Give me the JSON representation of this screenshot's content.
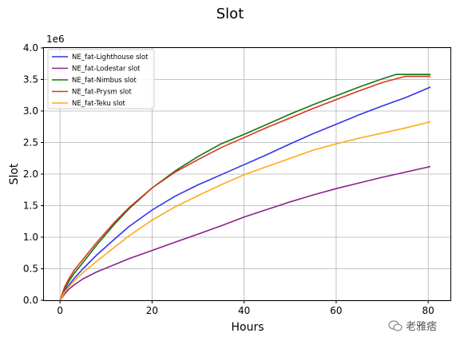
{
  "chart_data": {
    "type": "line",
    "title": "Slot",
    "xlabel": "Hours",
    "ylabel": "Slot",
    "y_offset_label": "1e6",
    "xlim": [
      -3.5,
      85
    ],
    "ylim": [
      0,
      4000000
    ],
    "xticks": [
      0,
      20,
      40,
      60,
      80
    ],
    "yticks": [
      0,
      500000,
      1000000,
      1500000,
      2000000,
      2500000,
      3000000,
      3500000,
      4000000
    ],
    "ytick_labels": [
      "0.0",
      "0.5",
      "1.0",
      "1.5",
      "2.0",
      "2.5",
      "3.0",
      "3.5",
      "4.0"
    ],
    "grid": true,
    "legend": "top-left",
    "series": [
      {
        "name": "NE_fat-Lighthouse slot",
        "color": "#3333ee",
        "x": [
          0,
          1,
          2,
          3,
          5,
          8,
          12,
          15,
          20,
          25,
          30,
          35,
          40,
          45,
          50,
          55,
          60,
          65,
          70,
          75,
          80.5
        ],
        "y": [
          0,
          150000,
          250000,
          340000,
          500000,
          720000,
          980000,
          1170000,
          1430000,
          1650000,
          1830000,
          1990000,
          2150000,
          2310000,
          2480000,
          2640000,
          2790000,
          2940000,
          3080000,
          3210000,
          3380000
        ]
      },
      {
        "name": "NE_fat-Lodestar slot",
        "color": "#882288",
        "x": [
          0,
          1,
          2,
          3,
          5,
          8,
          12,
          15,
          20,
          25,
          30,
          35,
          40,
          45,
          50,
          55,
          60,
          65,
          70,
          75,
          80.5
        ],
        "y": [
          0,
          100000,
          180000,
          240000,
          340000,
          450000,
          570000,
          660000,
          790000,
          920000,
          1050000,
          1180000,
          1320000,
          1440000,
          1560000,
          1670000,
          1770000,
          1860000,
          1950000,
          2030000,
          2120000
        ]
      },
      {
        "name": "NE_fat-Nimbus slot",
        "color": "#117711",
        "x": [
          0,
          1,
          2,
          3,
          5,
          8,
          12,
          15,
          20,
          25,
          30,
          35,
          40,
          45,
          50,
          55,
          60,
          65,
          70,
          73,
          80.5
        ],
        "y": [
          0,
          180000,
          310000,
          420000,
          600000,
          880000,
          1220000,
          1450000,
          1780000,
          2050000,
          2280000,
          2480000,
          2630000,
          2790000,
          2950000,
          3100000,
          3240000,
          3380000,
          3510000,
          3580000,
          3580000
        ]
      },
      {
        "name": "NE_fat-Prysm slot",
        "color": "#dd3322",
        "x": [
          0,
          1,
          2,
          3,
          5,
          8,
          12,
          15,
          20,
          25,
          30,
          35,
          40,
          45,
          50,
          55,
          60,
          65,
          70,
          75,
          80.5
        ],
        "y": [
          0,
          210000,
          350000,
          470000,
          650000,
          920000,
          1250000,
          1470000,
          1780000,
          2030000,
          2230000,
          2420000,
          2580000,
          2740000,
          2890000,
          3040000,
          3180000,
          3320000,
          3450000,
          3550000,
          3550000
        ]
      },
      {
        "name": "NE_fat-Teku slot",
        "color": "#ffaa11",
        "x": [
          0,
          1,
          2,
          3,
          5,
          8,
          12,
          15,
          20,
          25,
          30,
          35,
          40,
          45,
          50,
          55,
          60,
          65,
          70,
          75,
          80.5
        ],
        "y": [
          0,
          130000,
          220000,
          300000,
          440000,
          620000,
          850000,
          1020000,
          1270000,
          1480000,
          1660000,
          1830000,
          1990000,
          2120000,
          2250000,
          2380000,
          2480000,
          2570000,
          2650000,
          2730000,
          2830000
        ]
      }
    ]
  },
  "watermark": {
    "text": "老雅痞",
    "icon": "wechat-icon"
  }
}
